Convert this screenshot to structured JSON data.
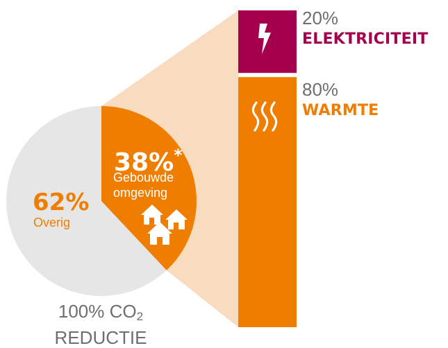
{
  "colors": {
    "pie_rest": "#e6e6e6",
    "built_env": "#ee7d00",
    "funnel": "#f9dcc0",
    "electricity": "#a5004d",
    "heat": "#ee7d00",
    "gray_text": "#6d6e71",
    "white": "#ffffff"
  },
  "chart_data": [
    {
      "type": "pie",
      "slices": [
        {
          "label": "Overig",
          "value": 62,
          "display": "62%"
        },
        {
          "label": "Gebouwde omgeving",
          "value": 38,
          "display": "38%",
          "marker": "*"
        }
      ],
      "caption_line1_prefix": "100% CO",
      "caption_line1_sub": "2",
      "caption_line2": "REDUCTIE"
    },
    {
      "type": "bar",
      "stacked": true,
      "segments": [
        {
          "label": "ELEKTRICITEIT",
          "value": 20,
          "display": "20%",
          "icon": "lightning-icon"
        },
        {
          "label": "WARMTE",
          "value": 80,
          "display": "80%",
          "icon": "heat-waves-icon"
        }
      ]
    }
  ],
  "icons": {
    "houses": "houses-icon"
  }
}
